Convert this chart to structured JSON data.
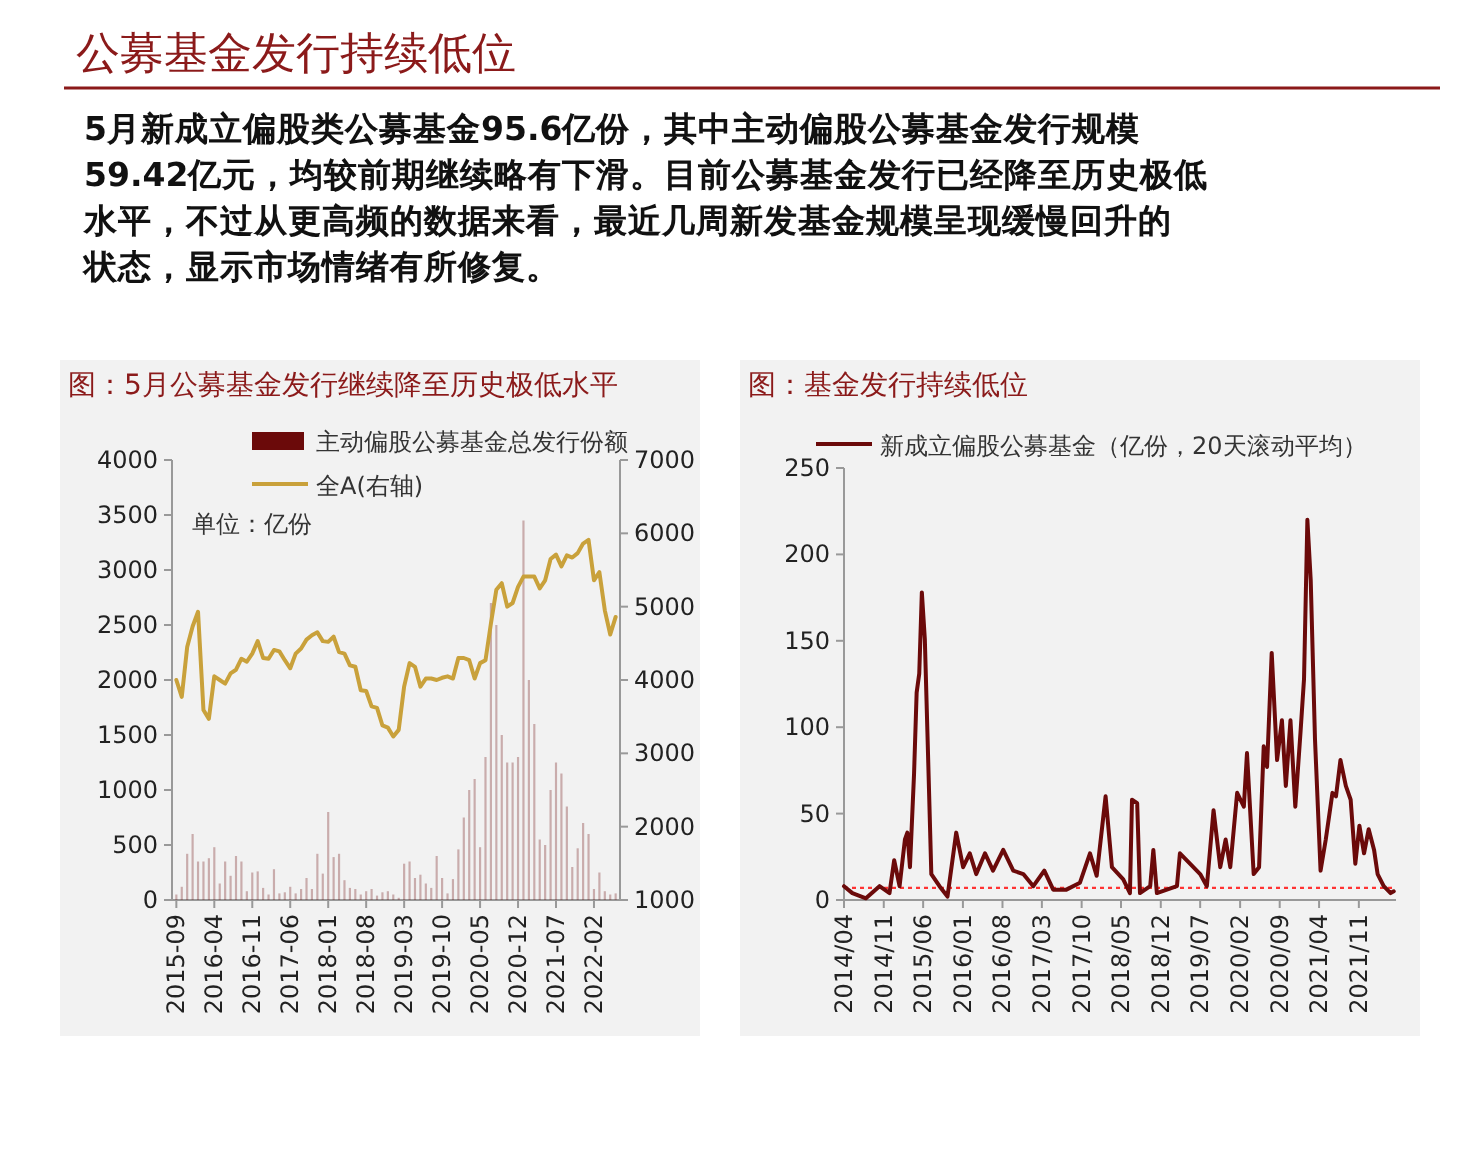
{
  "chart_data": [
    {
      "type": "other",
      "title": "公募基金发行持续低位",
      "annotations": [
        "5月新成立偏股类公募基金95.6亿份，其中主动偏股公募基金发行规模",
        "59.42亿元，均较前期继续略有下滑。目前公募基金发行已经降至历史极低",
        "水平，不过从更高频的数据来看，最近几周新发基金规模呈现缓慢回升的",
        "状态，显示市场情绪有所修复。"
      ]
    },
    {
      "type": "bar",
      "title": "图：5月公募基金发行继续降至历史极低水平",
      "legend": "top",
      "annotations": [
        "单位：亿份"
      ],
      "categories": [
        "2015-09",
        null,
        null,
        null,
        null,
        null,
        null,
        "2016-04",
        null,
        null,
        null,
        null,
        null,
        null,
        "2016-11",
        null,
        null,
        null,
        null,
        null,
        null,
        "2017-06",
        null,
        null,
        null,
        null,
        null,
        null,
        "2018-01",
        null,
        null,
        null,
        null,
        null,
        null,
        "2018-08",
        null,
        null,
        null,
        null,
        null,
        null,
        "2019-03",
        null,
        null,
        null,
        null,
        null,
        null,
        "2019-10",
        null,
        null,
        null,
        null,
        null,
        null,
        "2020-05",
        null,
        null,
        null,
        null,
        null,
        null,
        "2020-12",
        null,
        null,
        null,
        null,
        null,
        null,
        "2021-07",
        null,
        null,
        null,
        null,
        null,
        null,
        "2022-02",
        null,
        null,
        null,
        null
      ],
      "series": [
        {
          "name": "主动偏股公募基金总发行份额",
          "color": "#6b0a0a",
          "values": [
            50,
            120,
            420,
            600,
            350,
            350,
            380,
            480,
            150,
            350,
            220,
            400,
            350,
            80,
            250,
            260,
            110,
            50,
            280,
            60,
            70,
            120,
            60,
            100,
            200,
            100,
            420,
            240,
            800,
            390,
            420,
            180,
            110,
            100,
            50,
            80,
            100,
            40,
            70,
            80,
            50,
            20,
            330,
            350,
            200,
            230,
            150,
            110,
            400,
            200,
            60,
            190,
            460,
            750,
            1000,
            1100,
            480,
            1300,
            2700,
            2500,
            1500,
            1250,
            1250,
            1300,
            3450,
            2000,
            1600,
            550,
            500,
            1000,
            1250,
            1150,
            850,
            300,
            470,
            700,
            600,
            100,
            250,
            80,
            50,
            60
          ]
        },
        {
          "name": "全A(右轴)",
          "type": "line",
          "axis": "y2",
          "color": "#c9a13b",
          "values": [
            4000,
            3770,
            4450,
            4730,
            4930,
            3590,
            3470,
            4050,
            4000,
            3950,
            4090,
            4140,
            4290,
            4250,
            4360,
            4530,
            4300,
            4290,
            4410,
            4390,
            4270,
            4160,
            4360,
            4430,
            4550,
            4610,
            4650,
            4530,
            4520,
            4590,
            4380,
            4360,
            4200,
            4180,
            3860,
            3850,
            3640,
            3620,
            3380,
            3350,
            3230,
            3320,
            3910,
            4230,
            4180,
            3910,
            4020,
            4020,
            4000,
            4030,
            4050,
            4020,
            4300,
            4300,
            4270,
            4020,
            4230,
            4270,
            4770,
            5230,
            5320,
            5000,
            5050,
            5270,
            5410,
            5410,
            5410,
            5250,
            5360,
            5650,
            5710,
            5550,
            5700,
            5670,
            5730,
            5860,
            5910,
            5360,
            5470,
            4950,
            4620,
            4860
          ]
        }
      ],
      "ylim": [
        0,
        4000
      ],
      "yticks": [
        0,
        500,
        1000,
        1500,
        2000,
        2500,
        3000,
        3500,
        4000
      ],
      "y2lim": [
        1000,
        7000
      ],
      "y2ticks": [
        1000,
        2000,
        3000,
        4000,
        5000,
        6000,
        7000
      ]
    },
    {
      "type": "line",
      "title": "图：基金发行持续低位",
      "legend": "top",
      "series": [
        {
          "name": "新成立偏股公募基金（亿份，20天滚动平均）",
          "color": "#6b0a0a",
          "x": [
            "2014-04-01",
            "2014-05-16",
            "2014-07-28",
            "2014-10-09",
            "2014-12-02",
            "2014-12-27",
            "2015-01-25",
            "2015-02-23",
            "2015-03-08",
            "2015-03-22",
            "2015-04-13",
            "2015-04-27",
            "2015-05-11",
            "2015-05-25",
            "2015-06-10",
            "2015-06-24",
            "2015-07-15",
            "2015-08-28",
            "2015-10-10",
            "2015-11-26",
            "2016-01-02",
            "2016-02-07",
            "2016-03-13",
            "2016-04-29",
            "2016-06-11",
            "2016-08-05",
            "2016-09-28",
            "2016-11-21",
            "2017-01-14",
            "2017-03-14",
            "2017-05-01",
            "2017-07-11",
            "2017-09-22",
            "2017-11-15",
            "2017-12-21",
            "2018-02-07",
            "2018-03-13",
            "2018-05-13",
            "2018-06-18",
            "2018-06-29",
            "2018-07-27",
            "2018-08-11",
            "2018-10-05",
            "2018-10-22",
            "2018-11-10",
            "2019-01-03",
            "2019-02-26",
            "2019-03-14",
            "2019-05-07",
            "2019-07-01",
            "2019-08-06",
            "2019-09-11",
            "2019-10-17",
            "2019-11-15",
            "2019-12-10",
            "2020-01-16",
            "2020-02-21",
            "2020-03-09",
            "2020-04-14",
            "2020-05-13",
            "2020-06-07",
            "2020-06-25",
            "2020-07-20",
            "2020-08-18",
            "2020-09-13",
            "2020-10-04",
            "2020-10-29",
            "2020-11-24",
            "2020-12-22",
            "2021-01-10",
            "2021-01-28",
            "2021-02-15",
            "2021-03-10",
            "2021-04-09",
            "2021-05-07",
            "2021-06-12",
            "2021-07-01",
            "2021-07-25",
            "2021-08-23",
            "2021-09-18",
            "2021-10-13",
            "2021-11-04",
            "2021-11-29",
            "2021-12-24",
            "2022-01-22",
            "2022-02-10",
            "2022-03-15",
            "2022-04-21",
            "2022-05-08"
          ],
          "values": [
            8,
            4,
            1,
            8,
            4,
            23,
            8,
            35,
            39,
            19,
            73,
            120,
            131,
            178,
            151,
            97,
            15,
            8,
            2,
            39,
            19,
            27,
            15,
            27,
            17,
            29,
            17,
            15,
            8,
            17,
            6,
            6,
            10,
            27,
            14,
            60,
            19,
            12,
            4,
            58,
            56,
            4,
            8,
            29,
            4,
            6,
            8,
            27,
            21,
            15,
            8,
            52,
            19,
            35,
            19,
            62,
            54,
            85,
            15,
            19,
            89,
            77,
            143,
            81,
            104,
            66,
            104,
            54,
            97,
            128,
            220,
            185,
            93,
            17,
            35,
            62,
            60,
            81,
            66,
            58,
            21,
            43,
            27,
            41,
            29,
            15,
            8,
            4,
            5
          ]
        }
      ],
      "xlim": [
        "2014-04-01",
        "2022-05-20"
      ],
      "xticks": [
        {
          "value": "2014-04-01",
          "label": "2014/04"
        },
        {
          "value": "2014-11-01",
          "label": "2014/11"
        },
        {
          "value": "2015-06-01",
          "label": "2015/06"
        },
        {
          "value": "2016-01-01",
          "label": "2016/01"
        },
        {
          "value": "2016-08-01",
          "label": "2016/08"
        },
        {
          "value": "2017-03-01",
          "label": "2017/03"
        },
        {
          "value": "2017-10-01",
          "label": "2017/10"
        },
        {
          "value": "2018-05-01",
          "label": "2018/05"
        },
        {
          "value": "2018-12-01",
          "label": "2018/12"
        },
        {
          "value": "2019-07-01",
          "label": "2019/07"
        },
        {
          "value": "2020-02-01",
          "label": "2020/02"
        },
        {
          "value": "2020-09-01",
          "label": "2020/09"
        },
        {
          "value": "2021-04-01",
          "label": "2021/04"
        },
        {
          "value": "2021-11-01",
          "label": "2021/11"
        }
      ],
      "ylim": [
        0,
        250
      ],
      "yticks": [
        0,
        50,
        100,
        150,
        200,
        250
      ],
      "ref_lines": [
        {
          "axis": "y",
          "value": 7,
          "color": "#ff3333",
          "line_style": "dotted"
        }
      ]
    }
  ]
}
